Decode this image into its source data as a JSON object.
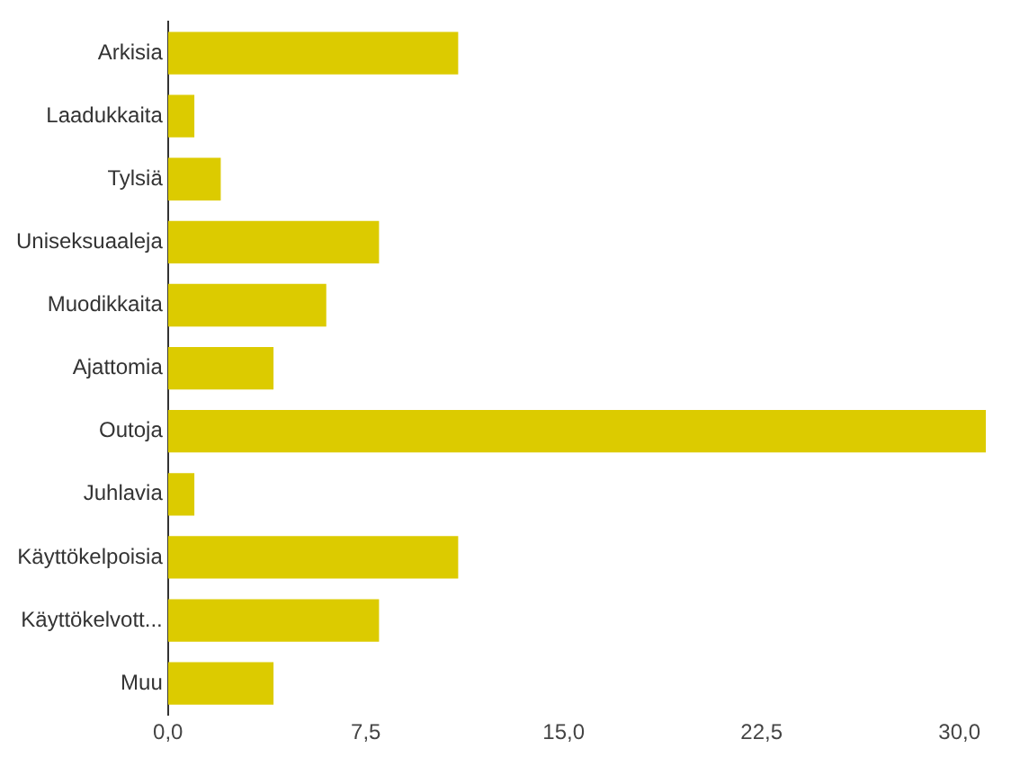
{
  "chart_data": {
    "type": "bar",
    "orientation": "horizontal",
    "categories": [
      "Arkisia",
      "Laadukkaita",
      "Tylsiä",
      "Uniseksuaaleja",
      "Muodikkaita",
      "Ajattomia",
      "Outoja",
      "Juhlavia",
      "Käyttökelpoisia",
      "Käyttökelvott...",
      "Muu"
    ],
    "values": [
      11,
      1,
      2,
      8,
      6,
      4,
      31,
      1,
      11,
      8,
      4
    ],
    "color": "#dccb00",
    "xlim": [
      0,
      31
    ],
    "xticks": [
      {
        "value": 0,
        "label": "0,0"
      },
      {
        "value": 7.5,
        "label": "7,5"
      },
      {
        "value": 15,
        "label": "15,0"
      },
      {
        "value": 22.5,
        "label": "22,5"
      },
      {
        "value": 30,
        "label": "30,0"
      }
    ],
    "grid": false,
    "legend": false
  }
}
